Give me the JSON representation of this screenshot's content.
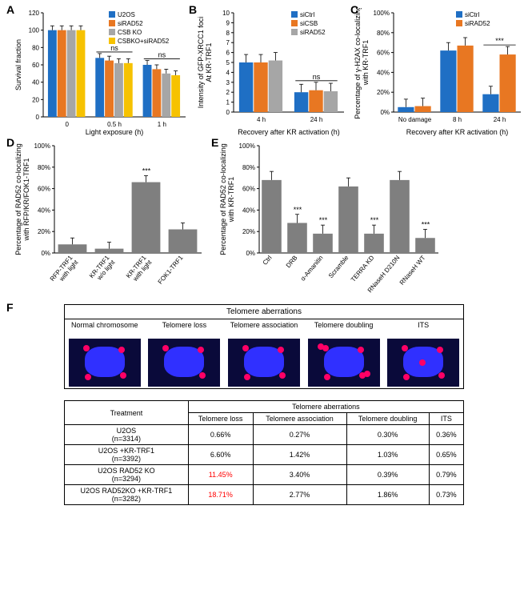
{
  "A": {
    "label": "A",
    "type": "bar",
    "ylabel": "Survival fraction",
    "xlabel": "Light exposure (h)",
    "categories": [
      "0",
      "0.5 h",
      "1 h"
    ],
    "series": [
      {
        "name": "U2OS",
        "color": "#1f6fc4",
        "values": [
          100,
          68,
          60
        ]
      },
      {
        "name": "siRAD52",
        "color": "#e87722",
        "values": [
          100,
          65,
          55
        ]
      },
      {
        "name": "CSB KO",
        "color": "#a6a6a6",
        "values": [
          100,
          62,
          50
        ]
      },
      {
        "name": "CSBKO+siRAD52",
        "color": "#f6c200",
        "values": [
          100,
          62,
          48
        ]
      }
    ],
    "ylim": [
      0,
      120
    ],
    "ytick_step": 20,
    "error": 5,
    "annotations": [
      {
        "group": 1,
        "text": "ns"
      },
      {
        "group": 2,
        "text": "ns"
      }
    ],
    "bar_width": 0.8,
    "label_fontsize": 9
  },
  "B": {
    "label": "B",
    "type": "bar",
    "ylabel_lines": [
      "Intensity of GFP-XRCC1 foci",
      "At KR-TRF1"
    ],
    "xlabel": "Recovery after KR activation (h)",
    "categories": [
      "4 h",
      "24 h"
    ],
    "series": [
      {
        "name": "siCtrl",
        "color": "#1f6fc4",
        "values": [
          5.0,
          2.0
        ]
      },
      {
        "name": "siCSB",
        "color": "#e87722",
        "values": [
          5.0,
          2.2
        ]
      },
      {
        "name": "siRAD52",
        "color": "#a6a6a6",
        "values": [
          5.2,
          2.1
        ]
      }
    ],
    "ylim": [
      0,
      10
    ],
    "yticks": [
      0,
      1,
      2,
      3,
      4,
      5,
      6,
      7,
      8,
      9,
      10
    ],
    "error": 0.8,
    "annotations": [
      {
        "group": 1,
        "text": "ns"
      }
    ]
  },
  "C": {
    "label": "C",
    "type": "bar",
    "ylabel_lines": [
      "Percentage of γ-H2AX co-localizing",
      "with KR-TRF1"
    ],
    "xlabel": "Recovery after KR activation (h)",
    "categories": [
      "No damage",
      "8 h",
      "24 h"
    ],
    "series": [
      {
        "name": "siCtrl",
        "color": "#1f6fc4",
        "values": [
          5,
          62,
          18
        ]
      },
      {
        "name": "siRAD52",
        "color": "#e87722",
        "values": [
          6,
          67,
          58
        ]
      }
    ],
    "ylim": [
      0,
      100
    ],
    "ytick_step": 20,
    "error": 8,
    "annotations": [
      {
        "group": 2,
        "text": "***"
      }
    ],
    "percent": true
  },
  "D": {
    "label": "D",
    "type": "bar",
    "ylabel_lines": [
      "Percentage of RAD52 co-localizing",
      "with RFP/KR/FOK1-TRF1"
    ],
    "categories": [
      "RFP-TRF1\nwith light",
      "KR-TRF1\nw/o light",
      "KR-TRF1\nwith light",
      "FOK1-TRF1"
    ],
    "values": [
      8,
      4,
      66,
      22
    ],
    "color": "#7f7f7f",
    "ylim": [
      0,
      100
    ],
    "ytick_step": 20,
    "error": 6,
    "annotations": [
      {
        "bar": 2,
        "text": "***"
      }
    ],
    "percent": true
  },
  "E": {
    "label": "E",
    "type": "bar",
    "ylabel_lines": [
      "Percentage of RAD52 co-localizing",
      "with KR-TRF1"
    ],
    "categories": [
      "Ctrl",
      "DRB",
      "α-Amanitin",
      "Scramble",
      "TERRA KD",
      "RNaseH D210N",
      "RNaseH WT"
    ],
    "values": [
      68,
      28,
      18,
      62,
      18,
      68,
      14
    ],
    "color": "#7f7f7f",
    "ylim": [
      0,
      100
    ],
    "ytick_step": 20,
    "error": 8,
    "annotations": [
      {
        "bar": 1,
        "text": "***"
      },
      {
        "bar": 2,
        "text": "***"
      },
      {
        "bar": 4,
        "text": "***"
      },
      {
        "bar": 6,
        "text": "***"
      }
    ],
    "percent": true
  },
  "F": {
    "label": "F",
    "strip_title": "Telomere aberrations",
    "strip_headers": [
      "Normal chromosome",
      "Telomere loss",
      "Telomere association",
      "Telomere doubling",
      "ITS"
    ],
    "table": {
      "columns": [
        "Treatment",
        "Telomere loss",
        "Telomere association",
        "Telomere doubling",
        "ITS"
      ],
      "group_header": "Telomere aberrations",
      "rows": [
        {
          "label": "U2OS\n(n=3314)",
          "vals": [
            "0.66%",
            "0.27%",
            "0.30%",
            "0.36%"
          ],
          "hl": [
            false,
            false,
            false,
            false
          ]
        },
        {
          "label": "U2OS +KR-TRF1\n(n=3392)",
          "vals": [
            "6.60%",
            "1.42%",
            "1.03%",
            "0.65%"
          ],
          "hl": [
            false,
            false,
            false,
            false
          ]
        },
        {
          "label": "U2OS RAD52 KO\n(n=3294)",
          "vals": [
            "11.45%",
            "3.40%",
            "0.39%",
            "0.79%"
          ],
          "hl": [
            true,
            false,
            false,
            false
          ]
        },
        {
          "label": "U2OS RAD52KO +KR-TRF1\n(n=3282)",
          "vals": [
            "18.71%",
            "2.77%",
            "1.86%",
            "0.73%"
          ],
          "hl": [
            true,
            false,
            false,
            false
          ]
        }
      ],
      "highlight_color": "#ff0000"
    }
  },
  "axis_color": "#000000",
  "axis_fontsize": 9,
  "tick_fontsize": 8,
  "legend_fontsize": 8
}
